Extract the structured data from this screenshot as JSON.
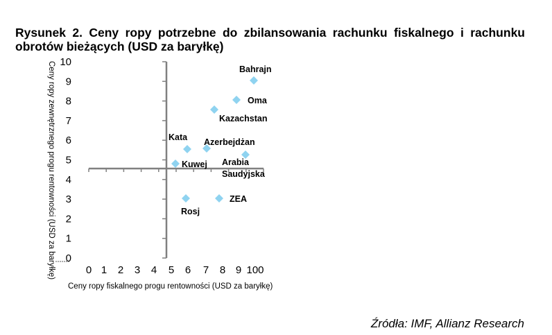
{
  "title": "Rysunek 2. Ceny ropy potrzebne do zbilansowania rachunku fiskalnego i rachunku obrotów bieżących (USD za baryłkę)",
  "source": "Źródła: IMF, Allianz Research",
  "colors": {
    "marker": "#8FD3F0",
    "axis": "#808080",
    "text": "#000000"
  },
  "chart_data": {
    "type": "scatter",
    "title": "Rysunek 2. Ceny ropy potrzebne do zbilansowania rachunku fiskalnego i rachunku obrotów bieżących (USD za baryłkę)",
    "xlabel": "Ceny ropy fiskalnego progu rentowności (USD za baryłkę)",
    "ylabel": "Ceny ropy zewnętrznego progu rentowności (USD za baryłkę)",
    "x_tick_labels": [
      "0",
      "1",
      "2",
      "3",
      "4",
      "5",
      "6",
      "7",
      "8",
      "9",
      "100"
    ],
    "y_tick_labels": [
      "0",
      "1",
      "2",
      "3",
      "4",
      "5",
      "6",
      "7",
      "8",
      "9",
      "10"
    ],
    "xlim": [
      0,
      10
    ],
    "ylim": [
      0,
      10
    ],
    "grid": false,
    "legend": null,
    "axes_crossing": {
      "x": 4.5,
      "y": 4.5
    },
    "points": [
      {
        "label": "Bahrajn",
        "x": 9.5,
        "y": 9.0
      },
      {
        "label": "Oma",
        "x": 8.5,
        "y": 8.0
      },
      {
        "label": "Kazachstan",
        "x": 7.2,
        "y": 7.5
      },
      {
        "label": "Kata",
        "x": 5.7,
        "y": 5.5
      },
      {
        "label": "Azerbejdżan",
        "x": 6.8,
        "y": 5.5
      },
      {
        "label": "Arabia Saudyjska",
        "x": 9.0,
        "y": 5.2
      },
      {
        "label": "Kuwej",
        "x": 5.0,
        "y": 4.8
      },
      {
        "label": "Rosj",
        "x": 5.6,
        "y": 3.0
      },
      {
        "label": "ZEA",
        "x": 7.5,
        "y": 3.0
      }
    ]
  }
}
